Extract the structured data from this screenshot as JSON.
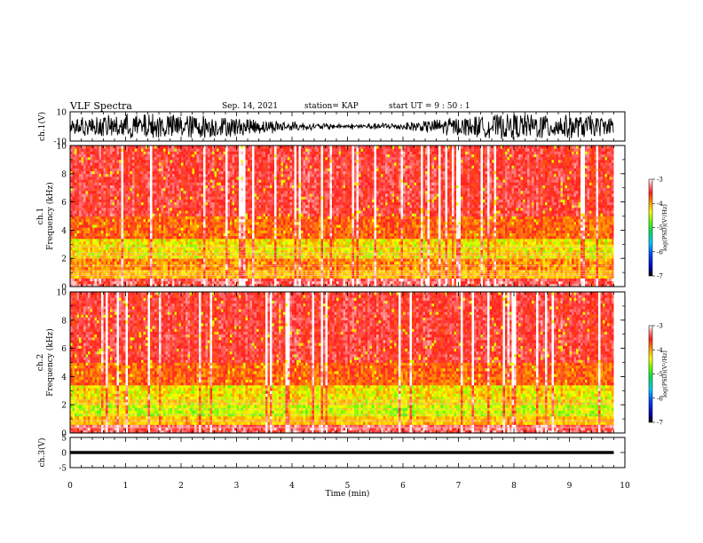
{
  "header": {
    "title": "VLF Spectra",
    "date": "Sep. 14, 2021",
    "station": "station= KAP",
    "start": "start UT =  9 : 50 : 1"
  },
  "chart_data": [
    {
      "type": "line",
      "name": "ch1-waveform",
      "ylabel": "ch.1(V)",
      "ylim": [
        -10,
        10
      ],
      "yticks": [
        "10",
        "-10"
      ],
      "xlim": [
        0,
        10
      ],
      "color": "#000000"
    },
    {
      "type": "heatmap",
      "name": "ch1-spectrogram",
      "ylabel": "ch.1\nFrequency (kHz)",
      "ylim": [
        0,
        10
      ],
      "yticks": [
        "0",
        "2",
        "4",
        "6",
        "8",
        "10"
      ],
      "xlim": [
        0,
        10
      ],
      "colorbar": {
        "label": "log(PSD)(V²/Hz)",
        "range": [
          -7,
          -3
        ],
        "ticks": [
          "-3",
          "-4",
          "-5",
          "-6",
          "-7"
        ]
      }
    },
    {
      "type": "heatmap",
      "name": "ch2-spectrogram",
      "ylabel": "ch.2\nFrequency (kHz)",
      "ylim": [
        0,
        10
      ],
      "yticks": [
        "0",
        "2",
        "4",
        "6",
        "8",
        "10"
      ],
      "xlim": [
        0,
        10
      ],
      "colorbar": {
        "label": "log(PSD)(V²/Hz)",
        "range": [
          -7,
          -3
        ],
        "ticks": [
          "-3",
          "-4",
          "-5",
          "-6",
          "-7"
        ]
      }
    },
    {
      "type": "line",
      "name": "ch3-waveform",
      "ylabel": "ch.3(V)",
      "ylim": [
        -5,
        5
      ],
      "yticks": [
        "5",
        "0",
        "-5"
      ],
      "xlim": [
        0,
        10
      ],
      "xlabel": "Time (min)",
      "xticks": [
        "0",
        "1",
        "2",
        "3",
        "4",
        "5",
        "6",
        "7",
        "8",
        "9",
        "10"
      ],
      "data_end_min": 9.8,
      "color": "#000000"
    }
  ]
}
